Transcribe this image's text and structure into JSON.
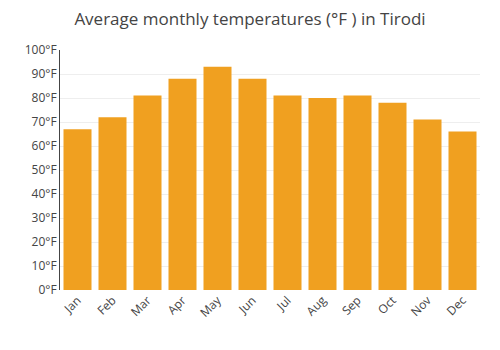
{
  "chart_data": {
    "type": "bar",
    "title": "Average monthly temperatures (°F ) in Tirodi",
    "categories": [
      "Jan",
      "Feb",
      "Mar",
      "Apr",
      "May",
      "Jun",
      "Jul",
      "Aug",
      "Sep",
      "Oct",
      "Nov",
      "Dec"
    ],
    "values": [
      67,
      72,
      81,
      88,
      93,
      88,
      81,
      80,
      81,
      78,
      71,
      66
    ],
    "color": "#F0A020",
    "ylim": [
      0,
      100
    ],
    "yticks": [
      {
        "value": 0,
        "label": "0°F"
      },
      {
        "value": 10,
        "label": "10°F"
      },
      {
        "value": 20,
        "label": "20°F"
      },
      {
        "value": 30,
        "label": "30°F"
      },
      {
        "value": 40,
        "label": "40°F"
      },
      {
        "value": 50,
        "label": "50°F"
      },
      {
        "value": 60,
        "label": "60°F"
      },
      {
        "value": 70,
        "label": "70°F"
      },
      {
        "value": 80,
        "label": "80°F"
      },
      {
        "value": 90,
        "label": "90°F"
      },
      {
        "value": 100,
        "label": "100°F"
      }
    ],
    "grid": true
  }
}
